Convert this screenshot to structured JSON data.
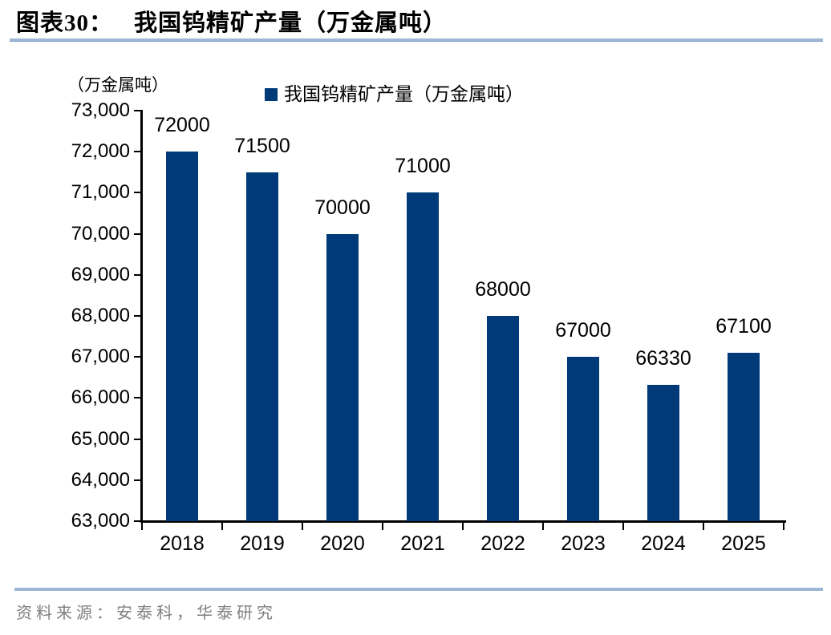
{
  "header": {
    "figure_label": "图表30：",
    "title": "我国钨精矿产量（万金属吨）"
  },
  "chart_data": {
    "type": "bar",
    "title": "我国钨精矿产量（万金属吨）",
    "unit_label": "（万金属吨）",
    "legend_entries": [
      "我国钨精矿产量（万金属吨）"
    ],
    "legend_position": "top",
    "categories": [
      "2018",
      "2019",
      "2020",
      "2021",
      "2022",
      "2023",
      "2024",
      "2025"
    ],
    "values": [
      72000,
      71500,
      70000,
      71000,
      68000,
      67000,
      66330,
      67100
    ],
    "data_labels": [
      "72000",
      "71500",
      "70000",
      "71000",
      "68000",
      "67000",
      "66330",
      "67100"
    ],
    "xlabel": "",
    "ylabel": "（万金属吨）",
    "ylim": [
      63000,
      73000
    ],
    "ytick_step": 1000,
    "ytick_labels": [
      "63,000",
      "64,000",
      "65,000",
      "66,000",
      "67,000",
      "68,000",
      "69,000",
      "70,000",
      "71,000",
      "72,000",
      "73,000"
    ],
    "grid": false,
    "bar_color": "#003A78"
  },
  "footer": {
    "source": "资料来源：安泰科，华泰研究"
  },
  "colors": {
    "bar": "#003A78",
    "rule": "#9DB8D6",
    "axis": "#000000",
    "source_text": "#7F7F7F"
  }
}
